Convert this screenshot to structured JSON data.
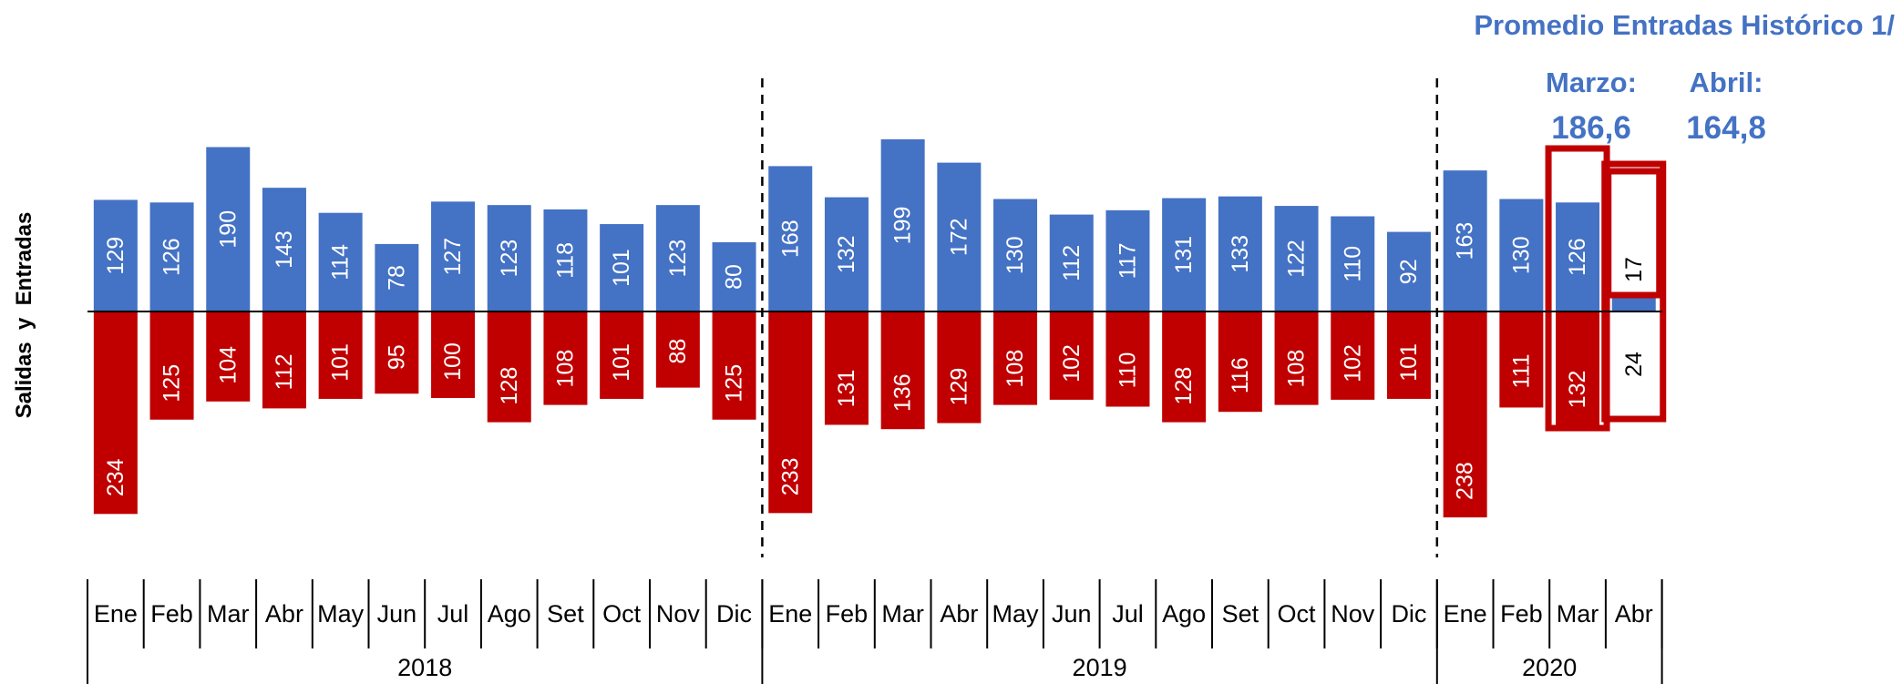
{
  "chart_data": {
    "type": "bar",
    "ylabel": "Salidas  y  Entradas",
    "months": [
      "Ene",
      "Feb",
      "Mar",
      "Abr",
      "May",
      "Jun",
      "Jul",
      "Ago",
      "Set",
      "Oct",
      "Nov",
      "Dic",
      "Ene",
      "Feb",
      "Mar",
      "Abr",
      "May",
      "Jun",
      "Jul",
      "Ago",
      "Set",
      "Oct",
      "Nov",
      "Dic",
      "Ene",
      "Feb",
      "Mar",
      "Abr"
    ],
    "years": [
      {
        "label": "2018",
        "count": 12
      },
      {
        "label": "2019",
        "count": 12
      },
      {
        "label": "2020",
        "count": 4
      }
    ],
    "series": [
      {
        "values": [
          129,
          126,
          190,
          143,
          114,
          78,
          127,
          123,
          118,
          101,
          123,
          80,
          168,
          132,
          199,
          172,
          130,
          112,
          117,
          131,
          133,
          122,
          110,
          92,
          163,
          130,
          126,
          17
        ],
        "color": "#4472C4",
        "direction": "up"
      },
      {
        "values": [
          234,
          125,
          104,
          112,
          101,
          95,
          100,
          128,
          108,
          101,
          88,
          125,
          233,
          131,
          136,
          129,
          108,
          102,
          110,
          128,
          116,
          108,
          102,
          101,
          238,
          111,
          132,
          24
        ],
        "color": "#C00000",
        "direction": "down"
      }
    ],
    "highlighted_categories": [
      26,
      27
    ],
    "partial_category": 27,
    "grid": false,
    "legend": "none"
  },
  "note": {
    "title": "Promedio Entradas Histórico 1/",
    "items": [
      {
        "label": "Marzo:",
        "value": "186,6"
      },
      {
        "label": "Abril:",
        "value": "164,8"
      }
    ]
  },
  "colors": {
    "entradas": "#4472C4",
    "salidas": "#C00000",
    "highlight": "#C00000",
    "note": "#4472C4"
  }
}
